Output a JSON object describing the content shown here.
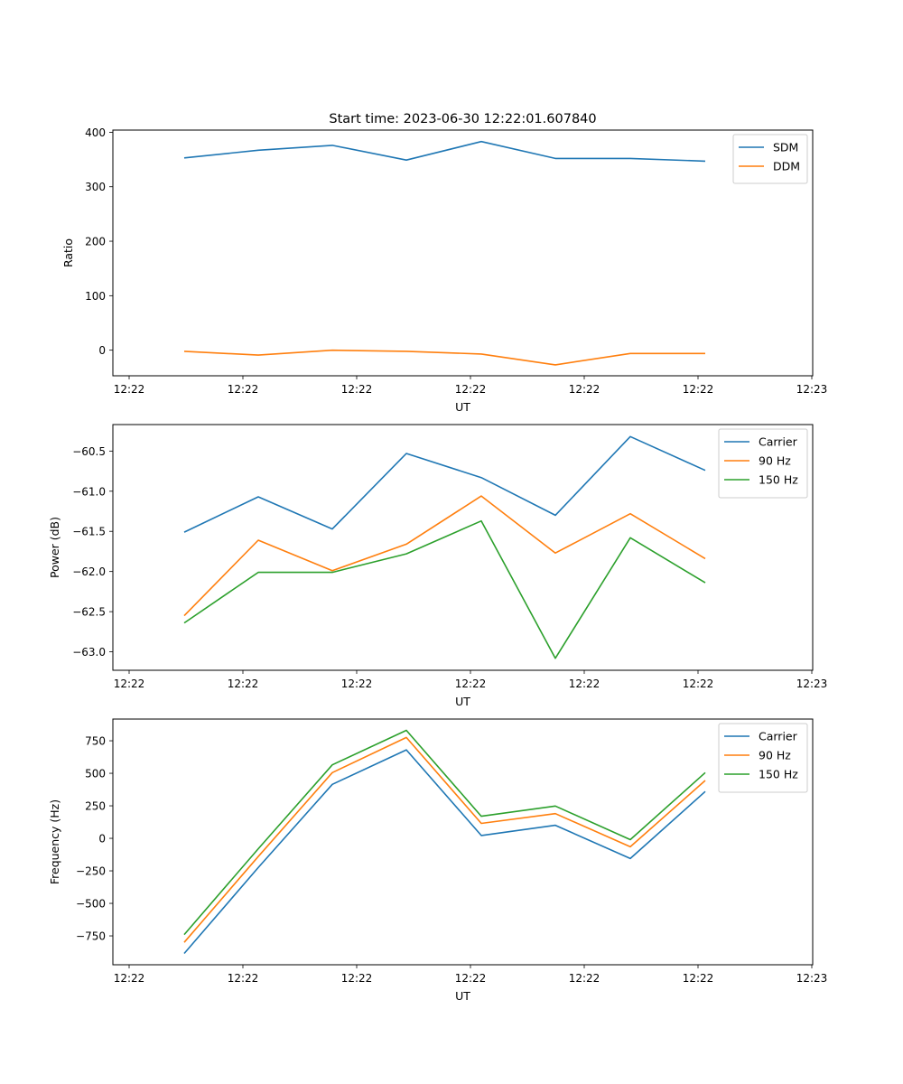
{
  "figure": {
    "title": "Start time: 2023-06-30 12:22:01.607840"
  },
  "chart_data": [
    {
      "type": "line",
      "xlabel": "UT",
      "ylabel": "Ratio",
      "xticklabels": [
        "12:22",
        "12:22",
        "12:22",
        "12:22",
        "12:22",
        "12:22",
        "12:23"
      ],
      "yticks": [
        0,
        100,
        200,
        300,
        400
      ],
      "ylim": [
        -47,
        404
      ],
      "legend_position": "top-right",
      "series": [
        {
          "name": "SDM",
          "color": "#1f77b4",
          "values": [
            353,
            367,
            376,
            349,
            383,
            352,
            352,
            347
          ]
        },
        {
          "name": "DDM",
          "color": "#ff7f0e",
          "values": [
            -2,
            -9,
            0,
            -2,
            -7,
            -27,
            -6,
            -6
          ]
        }
      ]
    },
    {
      "type": "line",
      "xlabel": "UT",
      "ylabel": "Power (dB)",
      "xticklabels": [
        "12:22",
        "12:22",
        "12:22",
        "12:22",
        "12:22",
        "12:22",
        "12:23"
      ],
      "yticks": [
        -63.0,
        -62.5,
        -62.0,
        -61.5,
        -61.0,
        -60.5
      ],
      "yticklabels": [
        "−63.0",
        "−62.5",
        "−62.0",
        "−61.5",
        "−61.0",
        "−60.5"
      ],
      "ylim": [
        -63.23,
        -60.17
      ],
      "legend_position": "top-right",
      "series": [
        {
          "name": "Carrier",
          "color": "#1f77b4",
          "values": [
            -61.51,
            -61.07,
            -61.47,
            -60.53,
            -60.83,
            -61.3,
            -60.32,
            -60.74
          ]
        },
        {
          "name": "90 Hz",
          "color": "#ff7f0e",
          "values": [
            -62.55,
            -61.61,
            -61.99,
            -61.66,
            -61.06,
            -61.77,
            -61.28,
            -61.84
          ]
        },
        {
          "name": "150 Hz",
          "color": "#2ca02c",
          "values": [
            -62.64,
            -62.01,
            -62.01,
            -61.78,
            -61.37,
            -63.08,
            -61.58,
            -62.14
          ]
        }
      ]
    },
    {
      "type": "line",
      "xlabel": "UT",
      "ylabel": "Frequency (Hz)",
      "xticklabels": [
        "12:22",
        "12:22",
        "12:22",
        "12:22",
        "12:22",
        "12:22",
        "12:23"
      ],
      "yticks": [
        -750,
        -500,
        -250,
        0,
        250,
        500,
        750
      ],
      "yticklabels": [
        "−750",
        "−500",
        "−250",
        "0",
        "250",
        "500",
        "750"
      ],
      "ylim": [
        -972,
        917
      ],
      "legend_position": "top-right",
      "series": [
        {
          "name": "Carrier",
          "color": "#1f77b4",
          "values": [
            -885,
            -225,
            415,
            680,
            22,
            100,
            -155,
            360
          ]
        },
        {
          "name": "90 Hz",
          "color": "#ff7f0e",
          "values": [
            -800,
            -140,
            505,
            775,
            115,
            190,
            -65,
            445
          ]
        },
        {
          "name": "150 Hz",
          "color": "#2ca02c",
          "values": [
            -740,
            -80,
            565,
            830,
            170,
            248,
            -10,
            505
          ]
        }
      ]
    }
  ]
}
